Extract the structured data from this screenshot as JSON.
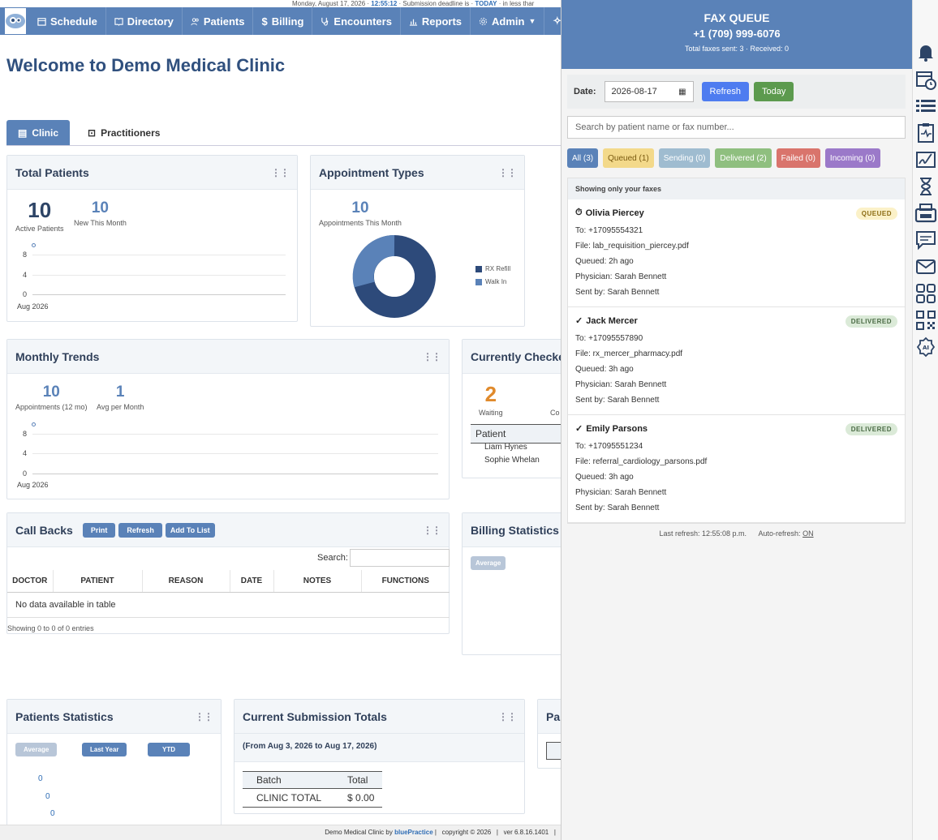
{
  "topbar": {
    "date_text": "Monday, August 17, 2026 ·",
    "time": "12:55:12",
    "deadline_text": "· Submission deadline is ·",
    "today": "TODAY",
    "tail": "· in less thar"
  },
  "nav": {
    "items": [
      "Schedule",
      "Directory",
      "Patients",
      "Billing",
      "Encounters",
      "Reports",
      "Admin",
      "AI"
    ]
  },
  "page_title": "Welcome to Demo Medical Clinic",
  "tabs": {
    "clinic": "Clinic",
    "practitioners": "Practitioners"
  },
  "total_patients": {
    "title": "Total Patients",
    "active_value": "10",
    "active_label": "Active Patients",
    "new_value": "10",
    "new_label": "New This Month",
    "y_ticks": [
      "8",
      "4",
      "0"
    ],
    "x_label": "Aug 2026"
  },
  "appointment_types": {
    "title": "Appointment Types",
    "value": "10",
    "label": "Appointments This Month",
    "legend": [
      "RX Refill",
      "Walk In"
    ]
  },
  "monthly_trends": {
    "title": "Monthly Trends",
    "appts_value": "10",
    "appts_label": "Appointments (12 mo)",
    "avg_value": "1",
    "avg_label": "Avg per Month",
    "y_ticks": [
      "8",
      "4",
      "0"
    ],
    "x_label": "Aug 2026"
  },
  "checked_in": {
    "title": "Currently Checke",
    "waiting_value": "2",
    "waiting_label": "Waiting",
    "col_label": "Co",
    "patient_header": "Patient",
    "patients": [
      "Liam Hynes",
      "Sophie Whelan"
    ]
  },
  "call_backs": {
    "title": "Call Backs",
    "print": "Print",
    "refresh": "Refresh",
    "add": "Add To List",
    "search_label": "Search:",
    "columns": [
      "DOCTOR",
      "PATIENT",
      "REASON",
      "DATE",
      "NOTES",
      "FUNCTIONS"
    ],
    "empty": "No data available in table",
    "showing": "Showing 0 to 0 of 0 entries"
  },
  "billing_stats": {
    "title": "Billing Statistics",
    "average": "Average"
  },
  "patients_stats": {
    "title": "Patients Statistics",
    "average": "Average",
    "last_year": "Last Year",
    "ytd": "YTD",
    "values": [
      "0",
      "0",
      "0"
    ]
  },
  "submission_totals": {
    "title": "Current Submission Totals",
    "range": "(From Aug 3, 2026 to Aug 17, 2026)",
    "col_batch": "Batch",
    "col_total": "Total",
    "row_label": "CLINIC TOTAL",
    "row_total": "$ 0.00"
  },
  "pa_widget": {
    "title": "Pa"
  },
  "footer": {
    "text1": "Demo Medical Clinic by",
    "brand": "bluePractice",
    "text2": "|   copyright © 2026   |   ver 6.8.16.1401   |"
  },
  "fax": {
    "title": "FAX QUEUE",
    "number": "+1 (709) 999-6076",
    "totals": "Total faxes sent: 3  ·  Received: 0",
    "date_label": "Date:",
    "date_value": "2026-08-17",
    "refresh": "Refresh",
    "today": "Today",
    "search_placeholder": "Search by patient name or fax number...",
    "chips": [
      "All (3)",
      "Queued (1)",
      "Sending (0)",
      "Delivered (2)",
      "Failed (0)",
      "Incoming (0)"
    ],
    "showing": "Showing only your faxes",
    "items": [
      {
        "mark": "⏱",
        "name": "Olivia Piercey",
        "status": "QUEUED",
        "to": "To: +17095554321",
        "file": "File: lab_requisition_piercey.pdf",
        "queued": "Queued: 2h ago",
        "physician": "Physician: Sarah Bennett",
        "sent_by": "Sent by: Sarah Bennett"
      },
      {
        "mark": "✓",
        "name": "Jack Mercer",
        "status": "DELIVERED",
        "to": "To: +17095557890",
        "file": "File: rx_mercer_pharmacy.pdf",
        "queued": "Queued: 3h ago",
        "physician": "Physician: Sarah Bennett",
        "sent_by": "Sent by: Sarah Bennett"
      },
      {
        "mark": "✓",
        "name": "Emily Parsons",
        "status": "DELIVERED",
        "to": "To: +17095551234",
        "file": "File: referral_cardiology_parsons.pdf",
        "queued": "Queued: 3h ago",
        "physician": "Physician: Sarah Bennett",
        "sent_by": "Sent by: Sarah Bennett"
      }
    ],
    "last_refresh": "Last refresh: 12:55:08 p.m.",
    "auto_refresh_label": "Auto-refresh:",
    "auto_refresh_value": "ON"
  },
  "rail_icons": [
    "bell-icon",
    "calendar-clock-icon",
    "list-icon",
    "clipboard-pulse-icon",
    "signature-icon",
    "hourglass-icon",
    "fax-icon",
    "chat-icon",
    "mail-icon",
    "grid-icon",
    "qr-code-icon",
    "ai-icon"
  ]
}
